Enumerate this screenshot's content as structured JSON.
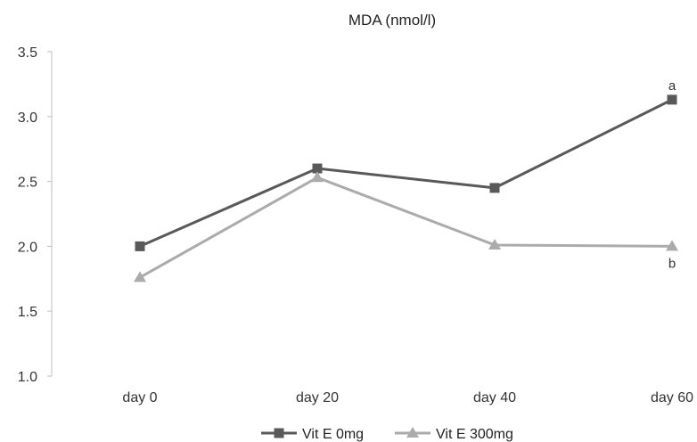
{
  "chart_data": {
    "type": "line",
    "title": "MDA (nmol/l)",
    "xlabel": "",
    "ylabel": "",
    "categories": [
      "day 0",
      "day 20",
      "day 40",
      "day 60"
    ],
    "ylim": [
      1.0,
      3.5
    ],
    "yticks": [
      "1.0",
      "1.5",
      "2.0",
      "2.5",
      "3.0",
      "3.5"
    ],
    "grid": false,
    "legend_position": "bottom",
    "series": [
      {
        "name": "Vit E 0mg",
        "values": [
          2.0,
          2.6,
          2.45,
          3.13
        ],
        "color": "#595959",
        "marker": "square"
      },
      {
        "name": "Vit E 300mg",
        "values": [
          1.76,
          2.53,
          2.01,
          2.0
        ],
        "color": "#ababab",
        "marker": "triangle"
      }
    ],
    "annotations": [
      {
        "text": "a",
        "series": 0,
        "category": "day 60"
      },
      {
        "text": "b",
        "series": 1,
        "category": "day 60"
      }
    ]
  }
}
